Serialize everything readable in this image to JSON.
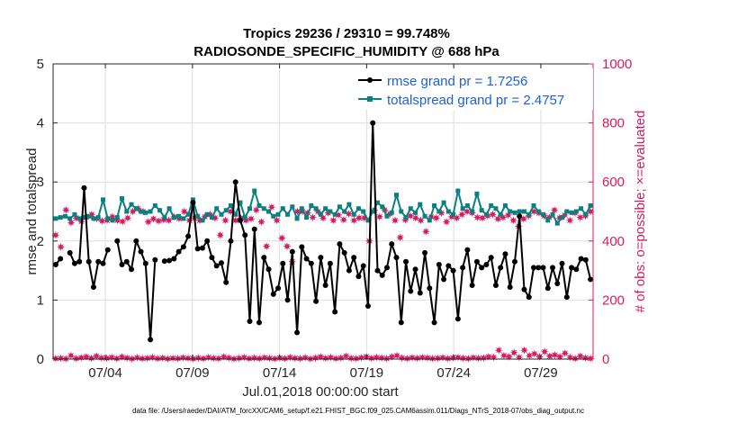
{
  "chart_data": {
    "type": "line",
    "title": "Tropics 29236 / 29310 = 99.748%",
    "subtitle": "RADIOSONDE_SPECIFIC_HUMIDITY @ 688 hPa",
    "xlabel": "Jul.01,2018 00:00:00 start",
    "ylabel": "rmse and totalspread",
    "ylabel_right": "# of obs: o=possible; ×=evaluated",
    "xlim": [
      0,
      62
    ],
    "ylim": [
      0,
      5
    ],
    "ylim_right": [
      0,
      1000
    ],
    "x_ticks": [
      6,
      16,
      26,
      36,
      46,
      56
    ],
    "x_tick_labels": [
      "07/04",
      "07/09",
      "07/14",
      "07/19",
      "07/24",
      "07/29"
    ],
    "y_ticks": [
      0,
      1,
      2,
      3,
      4,
      5
    ],
    "y_tick_labels": [
      "0",
      "1",
      "2",
      "3",
      "4",
      "5"
    ],
    "y_right_ticks": [
      0,
      200,
      400,
      600,
      800,
      1000
    ],
    "y_right_tick_labels": [
      "0",
      "200",
      "400",
      "600",
      "800",
      "1000"
    ],
    "legend_position": "top-right",
    "series": [
      {
        "name": "rmse grand pr = 1.7256",
        "color": "#000000",
        "axis": "left",
        "values": [
          1.6,
          1.7,
          null,
          1.8,
          1.62,
          1.65,
          2.9,
          1.65,
          1.22,
          1.65,
          1.62,
          1.85,
          null,
          2.0,
          1.6,
          1.65,
          1.52,
          2.0,
          1.82,
          1.62,
          0.33,
          1.68,
          null,
          1.66,
          1.67,
          1.7,
          1.82,
          1.9,
          2.08,
          2.65,
          1.87,
          1.88,
          2.0,
          1.72,
          1.58,
          1.63,
          1.3,
          2.0,
          3.0,
          2.35,
          2.1,
          0.64,
          2.2,
          0.62,
          1.72,
          1.52,
          1.1,
          1.2,
          1.62,
          1.0,
          1.82,
          0.45,
          1.9,
          1.7,
          1.62,
          0.98,
          1.72,
          1.25,
          1.62,
          0.8,
          1.95,
          1.8,
          1.5,
          1.72,
          1.4,
          1.58,
          0.9,
          4.0,
          1.5,
          1.42,
          1.55,
          1.95,
          1.72,
          0.62,
          1.65,
          1.15,
          1.52,
          1.12,
          1.8,
          1.2,
          0.62,
          1.6,
          1.35,
          1.58,
          1.5,
          0.68,
          1.55,
          1.85,
          1.25,
          1.65,
          1.55,
          1.6,
          1.72,
          1.25,
          1.55,
          1.78,
          1.22,
          1.65,
          2.42,
          1.18,
          1.05,
          1.55,
          1.55,
          1.55,
          1.2,
          1.55,
          1.28,
          1.62,
          1.05,
          1.55,
          1.52,
          1.7,
          1.68,
          1.35
        ]
      },
      {
        "name": "totalspread grand pr = 2.4757",
        "color": "#0a8080",
        "axis": "left",
        "values": [
          2.38,
          2.4,
          2.42,
          2.38,
          2.45,
          2.38,
          2.4,
          2.42,
          2.38,
          2.4,
          2.7,
          2.38,
          2.35,
          2.4,
          2.72,
          2.5,
          2.62,
          2.55,
          2.5,
          2.48,
          2.5,
          2.6,
          2.52,
          2.4,
          2.55,
          2.4,
          2.42,
          2.38,
          2.45,
          2.7,
          2.42,
          2.35,
          2.45,
          2.4,
          2.55,
          2.45,
          2.52,
          2.6,
          2.45,
          2.65,
          2.4,
          2.55,
          2.85,
          2.6,
          2.55,
          2.5,
          2.42,
          2.45,
          2.55,
          2.45,
          2.58,
          2.38,
          2.55,
          2.4,
          2.6,
          2.55,
          2.45,
          2.55,
          2.5,
          2.45,
          2.58,
          2.5,
          2.62,
          2.45,
          2.55,
          2.5,
          2.35,
          2.5,
          2.65,
          2.58,
          2.42,
          2.48,
          2.78,
          2.5,
          2.4,
          2.55,
          2.48,
          2.62,
          2.42,
          2.35,
          2.6,
          2.5,
          2.65,
          2.5,
          2.45,
          2.85,
          2.55,
          2.6,
          2.5,
          2.8,
          2.52,
          2.45,
          2.6,
          2.55,
          2.45,
          2.6,
          2.5,
          2.48,
          2.5,
          2.5,
          2.45,
          2.6,
          2.5,
          2.45,
          2.35,
          2.45,
          2.3,
          2.4,
          2.5,
          2.48,
          2.5,
          2.55,
          2.45,
          2.6
        ]
      },
      {
        "name": "possible",
        "color": "#d81b60",
        "axis": "right",
        "values": [
          420,
          380,
          505,
          462,
          478,
          466,
          480,
          490,
          476,
          468,
          470,
          482,
          470,
          466,
          478,
          500,
          510,
          500,
          465,
          475,
          468,
          472,
          470,
          482,
          476,
          500,
          470,
          478,
          470,
          482,
          490,
          478,
          420,
          470,
          500,
          470,
          478,
          470,
          475,
          505,
          465,
          382,
          515,
          470,
          410,
          382,
          330,
          500,
          500,
          495,
          480,
          500,
          478,
          495,
          470,
          488,
          472,
          492,
          470,
          478,
          478,
          400,
          505,
          482,
          505,
          492,
          470,
          412,
          472,
          485,
          478,
          470,
          432,
          482,
          478,
          495,
          465,
          482,
          478,
          490,
          500,
          495,
          480,
          478,
          485,
          490,
          475,
          480,
          488,
          470,
          450,
          475,
          485,
          500,
          495,
          485,
          480,
          505,
          478,
          488,
          470,
          495,
          480,
          485,
          500
        ]
      },
      {
        "name": "evaluated",
        "color": "#d81b60",
        "axis": "right",
        "values": [
          2,
          3,
          1,
          12,
          2,
          5,
          8,
          3,
          10,
          4,
          3,
          6,
          2,
          8,
          4,
          1,
          5,
          2,
          3,
          6,
          2,
          4,
          1,
          3,
          2,
          5,
          3,
          1,
          4,
          2,
          6,
          3,
          2,
          8,
          4,
          1,
          3,
          6,
          2,
          4,
          2,
          5,
          3,
          1,
          4,
          2,
          6,
          3,
          2,
          5,
          1,
          4,
          8,
          3,
          6,
          2,
          4,
          10,
          3,
          2,
          5,
          8,
          3,
          6,
          4,
          2,
          8,
          12,
          4,
          2,
          5,
          3,
          6,
          4,
          2,
          3,
          5,
          2,
          4,
          6,
          3,
          2,
          5,
          3,
          4,
          8,
          6,
          30,
          12,
          8,
          22,
          6,
          30,
          12,
          18,
          8,
          25,
          10,
          14,
          8,
          20,
          6,
          2,
          10,
          4,
          2
        ]
      }
    ]
  },
  "footer": "data file: /Users/raeder/DAI/ATM_forcXX/CAM6_setup/f.e21.FHIST_BGC.f09_025.CAM6assim.011/Diags_NTrS_2018-07/obs_diag_output.nc"
}
